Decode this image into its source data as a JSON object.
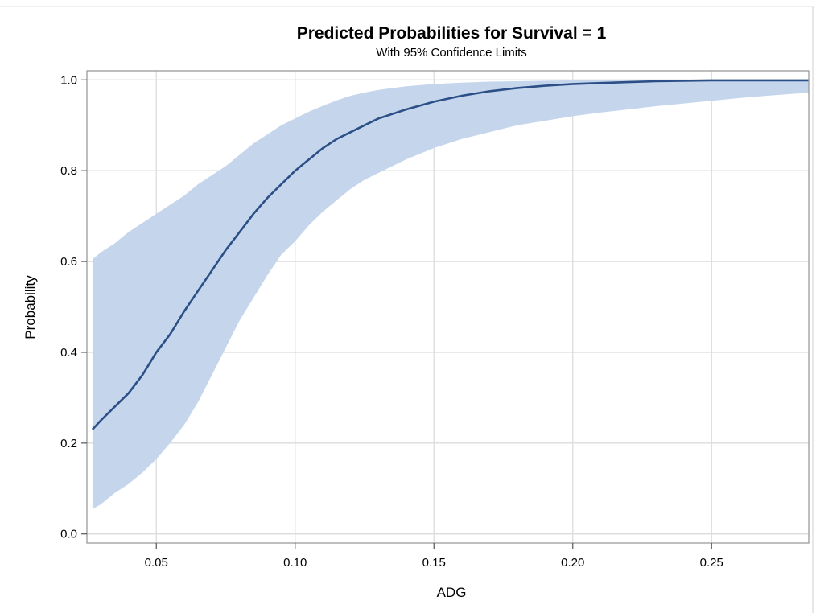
{
  "chart_data": {
    "type": "line",
    "title": "Predicted Probabilities for Survival = 1",
    "subtitle": "With 95% Confidence Limits",
    "xlabel": "ADG",
    "ylabel": "Probability",
    "xlim": [
      0.025,
      0.285
    ],
    "ylim": [
      -0.02,
      1.02
    ],
    "x_ticks": [
      "0.05",
      "0.10",
      "0.15",
      "0.20",
      "0.25"
    ],
    "y_ticks": [
      "0.0",
      "0.2",
      "0.4",
      "0.6",
      "0.8",
      "1.0"
    ],
    "grid": true,
    "colors": {
      "band": "#c5d6ec",
      "line": "#2b4f86",
      "grid": "#dcdcdc"
    },
    "series": [
      {
        "x": [
          0.027,
          0.03,
          0.035,
          0.04,
          0.045,
          0.05,
          0.055,
          0.06,
          0.065,
          0.07,
          0.075,
          0.08,
          0.085,
          0.09,
          0.095,
          0.1,
          0.105,
          0.11,
          0.115,
          0.12,
          0.125,
          0.13,
          0.14,
          0.15,
          0.16,
          0.17,
          0.18,
          0.19,
          0.2,
          0.21,
          0.22,
          0.23,
          0.24,
          0.25,
          0.26,
          0.27,
          0.285
        ],
        "values": [
          0.23,
          0.25,
          0.28,
          0.31,
          0.35,
          0.4,
          0.44,
          0.49,
          0.535,
          0.58,
          0.625,
          0.665,
          0.705,
          0.74,
          0.77,
          0.8,
          0.825,
          0.85,
          0.87,
          0.885,
          0.9,
          0.915,
          0.935,
          0.952,
          0.965,
          0.975,
          0.982,
          0.987,
          0.991,
          0.993,
          0.995,
          0.997,
          0.998,
          0.999,
          0.999,
          0.999,
          0.999
        ],
        "lower": [
          0.055,
          0.065,
          0.09,
          0.11,
          0.135,
          0.165,
          0.2,
          0.24,
          0.29,
          0.35,
          0.41,
          0.47,
          0.52,
          0.57,
          0.615,
          0.645,
          0.68,
          0.71,
          0.735,
          0.76,
          0.78,
          0.795,
          0.825,
          0.85,
          0.87,
          0.885,
          0.9,
          0.91,
          0.92,
          0.928,
          0.935,
          0.942,
          0.948,
          0.954,
          0.96,
          0.965,
          0.972
        ],
        "upper": [
          0.605,
          0.62,
          0.64,
          0.665,
          0.685,
          0.705,
          0.725,
          0.745,
          0.77,
          0.79,
          0.81,
          0.835,
          0.86,
          0.88,
          0.9,
          0.915,
          0.93,
          0.943,
          0.955,
          0.965,
          0.972,
          0.978,
          0.986,
          0.991,
          0.994,
          0.996,
          0.997,
          0.998,
          0.999,
          0.999,
          0.999,
          0.999,
          0.999,
          0.999,
          0.999,
          0.999,
          0.999
        ]
      }
    ]
  }
}
